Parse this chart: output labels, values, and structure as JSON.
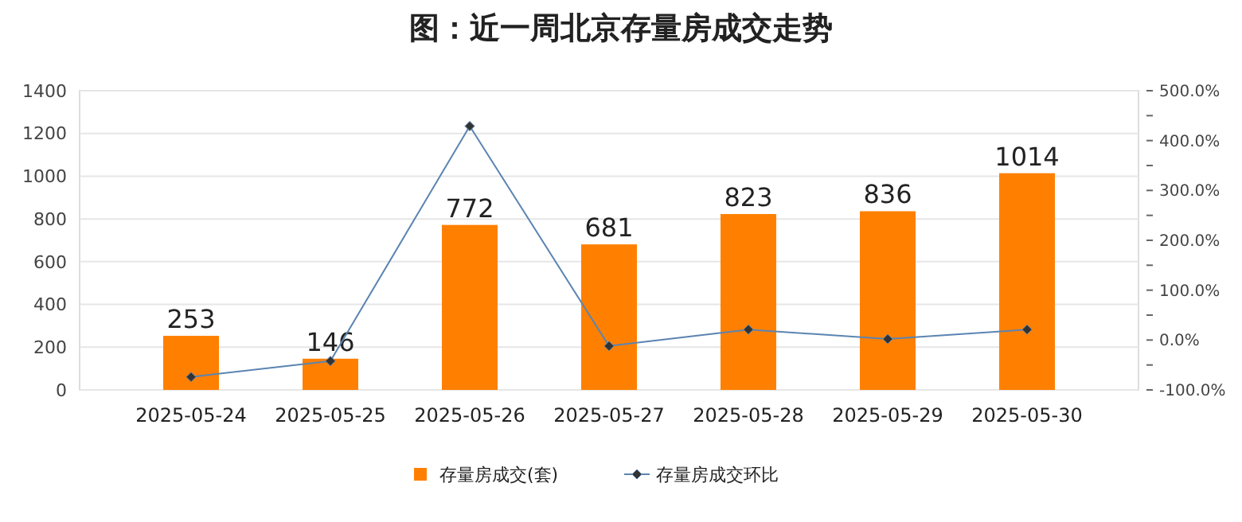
{
  "chart_data": {
    "type": "bar",
    "title": "图：近一周北京存量房成交走势",
    "categories": [
      "2025-05-24",
      "2025-05-25",
      "2025-05-26",
      "2025-05-27",
      "2025-05-28",
      "2025-05-29",
      "2025-05-30"
    ],
    "series": [
      {
        "name": "存量房成交(套)",
        "color": "#ff8000",
        "values": [
          253,
          146,
          772,
          681,
          823,
          836,
          1014
        ],
        "value_labels": [
          "253",
          "146",
          "772",
          "681",
          "823",
          "836",
          "1014"
        ]
      },
      {
        "name": "存量房成交环比",
        "type": "line",
        "axis": "y2",
        "color": "#5b84b1",
        "marker": "diamond",
        "values": [
          -74,
          -42,
          429,
          -12,
          21,
          2,
          21
        ]
      }
    ],
    "ylim": [
      0,
      1400
    ],
    "yticks": [
      0,
      200,
      400,
      600,
      800,
      1000,
      1200,
      1400
    ],
    "y2lim": [
      -100,
      500
    ],
    "y2ticks": [
      {
        "value": -100,
        "label": "-100.0%"
      },
      {
        "value": -50,
        "label": null
      },
      {
        "value": 0,
        "label": "0.0%"
      },
      {
        "value": 50,
        "label": null
      },
      {
        "value": 100,
        "label": "100.0%"
      },
      {
        "value": 150,
        "label": null
      },
      {
        "value": 200,
        "label": "200.0%"
      },
      {
        "value": 250,
        "label": null
      },
      {
        "value": 300,
        "label": "300.0%"
      },
      {
        "value": 350,
        "label": null
      },
      {
        "value": 400,
        "label": "400.0%"
      },
      {
        "value": 450,
        "label": null
      },
      {
        "value": 500,
        "label": "500.0%"
      }
    ],
    "grid": "y",
    "legend": "bottom"
  }
}
